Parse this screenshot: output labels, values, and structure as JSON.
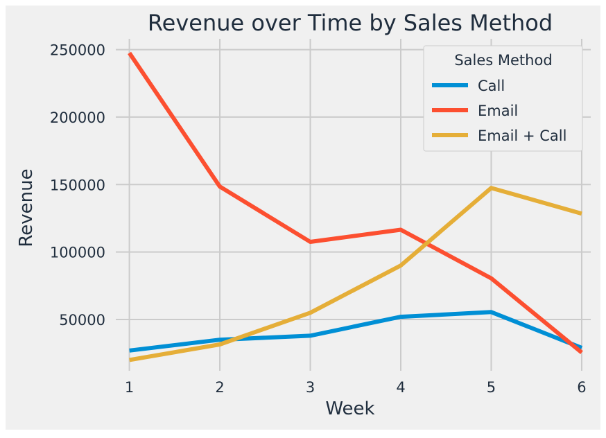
{
  "chart_data": {
    "type": "line",
    "title": "Revenue over Time by Sales Method",
    "xlabel": "Week",
    "ylabel": "Revenue",
    "x": [
      1,
      2,
      3,
      4,
      5,
      6
    ],
    "xlim": [
      0.85,
      6.1
    ],
    "ylim": [
      12000,
      258000
    ],
    "yticks": [
      50000,
      100000,
      150000,
      200000,
      250000
    ],
    "grid": true,
    "legend": {
      "title": "Sales Method",
      "placement": "top-right"
    },
    "series": [
      {
        "name": "Call",
        "color": "#008fd5",
        "values": [
          27000,
          35000,
          38000,
          52000,
          55500,
          29000
        ]
      },
      {
        "name": "Email",
        "color": "#fc4f30",
        "values": [
          247500,
          148500,
          107500,
          116500,
          80500,
          25500
        ]
      },
      {
        "name": "Email + Call",
        "color": "#e5ae38",
        "values": [
          20000,
          31500,
          55000,
          90000,
          147500,
          128500
        ]
      }
    ]
  }
}
